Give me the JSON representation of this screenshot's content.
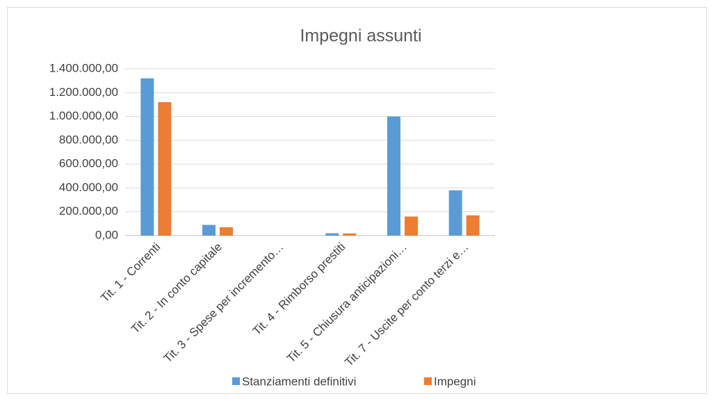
{
  "chart_data": {
    "type": "bar",
    "title": "Impegni assunti",
    "categories": [
      "Tit. 1 - Correnti",
      "Tit. 2 - In conto capitale",
      "Tit. 3 - Spese per incremento…",
      "Tit. 4 - Rimborso prestiti",
      "Tit. 5 - Chiusura anticipazioni…",
      "Tit. 7 - Uscite per conto terzi e…"
    ],
    "series": [
      {
        "name": "Stanziamenti definitivi",
        "color": "#5b9bd5",
        "values": [
          1320000,
          90000,
          0,
          20000,
          1000000,
          380000
        ]
      },
      {
        "name": "Impegni",
        "color": "#ed7d31",
        "values": [
          1120000,
          70000,
          0,
          18000,
          160000,
          170000
        ]
      }
    ],
    "ylim": [
      0,
      1400000
    ],
    "yticks": [
      {
        "value": 0,
        "label": "0,00"
      },
      {
        "value": 200000,
        "label": "200.000,00"
      },
      {
        "value": 400000,
        "label": "400.000,00"
      },
      {
        "value": 600000,
        "label": "600.000,00"
      },
      {
        "value": 800000,
        "label": "800.000,00"
      },
      {
        "value": 1000000,
        "label": "1.000.000,00"
      },
      {
        "value": 1200000,
        "label": "1.200.000,00"
      },
      {
        "value": 1400000,
        "label": "1.400.000,00"
      }
    ],
    "grid": true,
    "legend": "bottom"
  }
}
